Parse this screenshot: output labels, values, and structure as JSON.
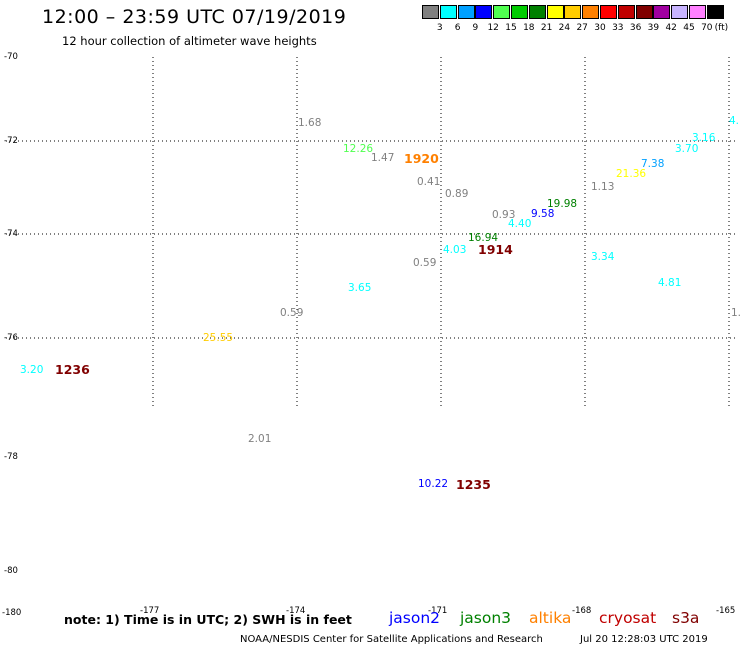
{
  "header": {
    "title": "12:00 – 23:59 UTC 07/19/2019",
    "subtitle": "12 hour collection of altimeter wave heights"
  },
  "legend": {
    "unit": "(ft)",
    "bins": [
      {
        "label": "3",
        "color": "#808080"
      },
      {
        "label": "6",
        "color": "#00ffff"
      },
      {
        "label": "9",
        "color": "#00a0ff"
      },
      {
        "label": "12",
        "color": "#0000ff"
      },
      {
        "label": "15",
        "color": "#50ff50"
      },
      {
        "label": "18",
        "color": "#00cc00"
      },
      {
        "label": "21",
        "color": "#008000"
      },
      {
        "label": "24",
        "color": "#ffff00"
      },
      {
        "label": "27",
        "color": "#ffcc00"
      },
      {
        "label": "30",
        "color": "#ff8000"
      },
      {
        "label": "33",
        "color": "#ff0000"
      },
      {
        "label": "36",
        "color": "#c00000"
      },
      {
        "label": "39",
        "color": "#800000"
      },
      {
        "label": "42",
        "color": "#a000a0"
      },
      {
        "label": "45",
        "color": "#c8b4ff"
      },
      {
        "label": "70",
        "color": "#ff80ff"
      },
      {
        "label": "",
        "color": "#000000"
      }
    ]
  },
  "map": {
    "lat_labels": [
      "-70",
      "-72",
      "-74",
      "-76",
      "-78",
      "-80"
    ],
    "lon_labels": [
      "-180",
      "-177",
      "-174",
      "-171",
      "-168",
      "-165"
    ],
    "observations": [
      {
        "text": "1.68",
        "color": "#808080"
      },
      {
        "text": "12.26",
        "color": "#50ff50"
      },
      {
        "text": "1.47",
        "color": "#808080"
      },
      {
        "text": "0.41",
        "color": "#808080"
      },
      {
        "text": "0.89",
        "color": "#808080"
      },
      {
        "text": "0.93",
        "color": "#808080"
      },
      {
        "text": "9.58",
        "color": "#0000ff"
      },
      {
        "text": "19.98",
        "color": "#008000"
      },
      {
        "text": "1.13",
        "color": "#808080"
      },
      {
        "text": "21.36",
        "color": "#ffff00"
      },
      {
        "text": "7.38",
        "color": "#00a0ff"
      },
      {
        "text": "3.70",
        "color": "#00ffff"
      },
      {
        "text": "3.16",
        "color": "#00ffff"
      },
      {
        "text": "4.",
        "color": "#00ffff"
      },
      {
        "text": "16.94",
        "color": "#008000"
      },
      {
        "text": "4.40",
        "color": "#00ffff"
      },
      {
        "text": "4.03",
        "color": "#00ffff"
      },
      {
        "text": "0.59",
        "color": "#808080"
      },
      {
        "text": "3.34",
        "color": "#00ffff"
      },
      {
        "text": "4.81",
        "color": "#00ffff"
      },
      {
        "text": "3.65",
        "color": "#00ffff"
      },
      {
        "text": "0.59",
        "color": "#808080"
      },
      {
        "text": "25.55",
        "color": "#ffcc00"
      },
      {
        "text": "1.",
        "color": "#808080"
      },
      {
        "text": "3.20",
        "color": "#00ffff"
      },
      {
        "text": "2.01",
        "color": "#808080"
      },
      {
        "text": "10.22",
        "color": "#0000ff"
      }
    ],
    "pass_times": [
      {
        "text": "1920",
        "color": "#ff8000"
      },
      {
        "text": "1914",
        "color": "#800000"
      },
      {
        "text": "1236",
        "color": "#800000"
      },
      {
        "text": "1235",
        "color": "#800000"
      }
    ]
  },
  "footer": {
    "note": "note: 1) Time is in UTC; 2) SWH is in feet",
    "satellites": [
      {
        "name": "jason2",
        "color": "#0000ff"
      },
      {
        "name": "jason3",
        "color": "#008000"
      },
      {
        "name": "altika",
        "color": "#ff8000"
      },
      {
        "name": "cryosat",
        "color": "#c00000"
      },
      {
        "name": "s3a",
        "color": "#800000"
      }
    ],
    "credit": "NOAA/NESDIS Center for Satellite Applications and Research",
    "timestamp": "Jul 20 12:28:03 UTC 2019"
  }
}
